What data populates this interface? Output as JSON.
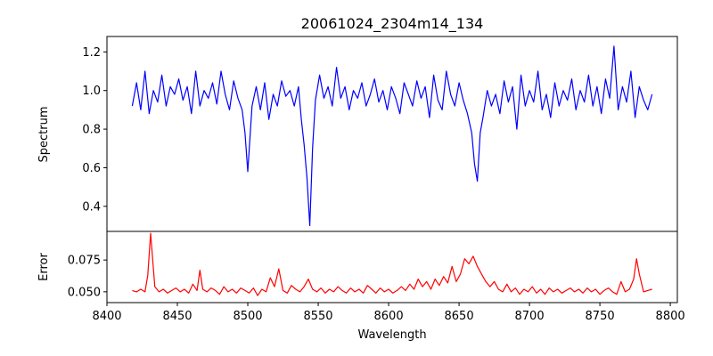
{
  "chart_data": [
    {
      "type": "line",
      "title": "20061024_2304m14_134",
      "xlabel": "",
      "ylabel": "Spectrum",
      "xlim": [
        8400,
        8805
      ],
      "ylim": [
        0.27,
        1.28
      ],
      "xticks": [
        8400,
        8450,
        8500,
        8550,
        8600,
        8650,
        8700,
        8750,
        8800
      ],
      "yticks": [
        0.4,
        0.6,
        0.8,
        1.0,
        1.2
      ],
      "ytick_labels": [
        "0.4",
        "0.6",
        "0.8",
        "1.0",
        "1.2"
      ],
      "color": "#0000ff",
      "series": [
        {
          "x": [
            8418,
            8421,
            8424,
            8427,
            8430,
            8433,
            8436,
            8439,
            8442,
            8445,
            8448,
            8451,
            8454,
            8457,
            8460,
            8463,
            8466,
            8469,
            8472,
            8475,
            8478,
            8481,
            8484,
            8487,
            8490,
            8493,
            8496,
            8498,
            8500,
            8503,
            8506,
            8509,
            8512,
            8515,
            8518,
            8521,
            8524,
            8527,
            8530,
            8533,
            8536,
            8538,
            8540,
            8542,
            8544,
            8546,
            8548,
            8551,
            8554,
            8557,
            8560,
            8563,
            8566,
            8569,
            8572,
            8575,
            8578,
            8581,
            8584,
            8587,
            8590,
            8593,
            8596,
            8599,
            8602,
            8605,
            8608,
            8611,
            8614,
            8617,
            8620,
            8623,
            8626,
            8629,
            8632,
            8635,
            8638,
            8641,
            8644,
            8647,
            8650,
            8653,
            8656,
            8659,
            8661,
            8663,
            8665,
            8667,
            8670,
            8673,
            8676,
            8679,
            8682,
            8685,
            8688,
            8691,
            8694,
            8697,
            8700,
            8703,
            8706,
            8709,
            8712,
            8715,
            8718,
            8721,
            8724,
            8727,
            8730,
            8733,
            8736,
            8739,
            8742,
            8745,
            8748,
            8751,
            8754,
            8757,
            8760,
            8763,
            8766,
            8769,
            8772,
            8775,
            8778,
            8781,
            8784,
            8787
          ],
          "y": [
            0.92,
            1.04,
            0.9,
            1.1,
            0.88,
            1.0,
            0.94,
            1.08,
            0.92,
            1.02,
            0.98,
            1.06,
            0.95,
            1.02,
            0.88,
            1.1,
            0.92,
            1.0,
            0.96,
            1.04,
            0.93,
            1.1,
            0.98,
            0.9,
            1.05,
            0.96,
            0.9,
            0.78,
            0.58,
            0.92,
            1.02,
            0.9,
            1.04,
            0.85,
            0.98,
            0.92,
            1.05,
            0.97,
            1.0,
            0.92,
            1.02,
            0.85,
            0.72,
            0.55,
            0.3,
            0.7,
            0.95,
            1.08,
            0.96,
            1.02,
            0.92,
            1.12,
            0.96,
            1.02,
            0.9,
            1.0,
            0.96,
            1.04,
            0.92,
            0.98,
            1.06,
            0.94,
            1.0,
            0.9,
            1.02,
            0.96,
            0.88,
            1.04,
            0.98,
            0.92,
            1.05,
            0.96,
            1.02,
            0.86,
            1.08,
            0.95,
            0.9,
            1.1,
            0.98,
            0.92,
            1.04,
            0.95,
            0.88,
            0.78,
            0.62,
            0.53,
            0.78,
            0.86,
            1.0,
            0.92,
            0.98,
            0.88,
            1.05,
            0.94,
            1.02,
            0.8,
            1.08,
            0.92,
            1.0,
            0.94,
            1.1,
            0.9,
            0.98,
            0.86,
            1.04,
            0.92,
            1.0,
            0.95,
            1.06,
            0.9,
            1.0,
            0.94,
            1.08,
            0.92,
            1.02,
            0.88,
            1.06,
            0.96,
            1.23,
            0.9,
            1.02,
            0.94,
            1.1,
            0.86,
            1.02,
            0.95,
            0.9,
            0.98
          ]
        }
      ]
    },
    {
      "type": "line",
      "title": "",
      "xlabel": "Wavelength",
      "ylabel": "Error",
      "xlim": [
        8400,
        8805
      ],
      "ylim": [
        0.0415,
        0.0975
      ],
      "xticks": [
        8400,
        8450,
        8500,
        8550,
        8600,
        8650,
        8700,
        8750,
        8800
      ],
      "yticks": [
        0.05,
        0.075
      ],
      "ytick_labels": [
        "0.050",
        "0.075"
      ],
      "color": "#ff0000",
      "series": [
        {
          "x": [
            8418,
            8421,
            8424,
            8427,
            8429,
            8431,
            8434,
            8437,
            8440,
            8443,
            8446,
            8449,
            8452,
            8455,
            8458,
            8461,
            8464,
            8466,
            8468,
            8471,
            8474,
            8477,
            8480,
            8483,
            8486,
            8489,
            8492,
            8495,
            8498,
            8501,
            8504,
            8507,
            8510,
            8513,
            8516,
            8519,
            8522,
            8525,
            8528,
            8531,
            8534,
            8537,
            8540,
            8543,
            8546,
            8549,
            8552,
            8555,
            8558,
            8561,
            8564,
            8567,
            8570,
            8573,
            8576,
            8579,
            8582,
            8585,
            8588,
            8591,
            8594,
            8597,
            8600,
            8603,
            8606,
            8609,
            8612,
            8615,
            8618,
            8621,
            8624,
            8627,
            8630,
            8633,
            8636,
            8639,
            8642,
            8645,
            8648,
            8651,
            8654,
            8657,
            8660,
            8663,
            8666,
            8669,
            8672,
            8675,
            8678,
            8681,
            8684,
            8687,
            8690,
            8693,
            8696,
            8699,
            8702,
            8705,
            8708,
            8711,
            8714,
            8717,
            8720,
            8723,
            8726,
            8729,
            8732,
            8735,
            8738,
            8741,
            8744,
            8747,
            8750,
            8753,
            8756,
            8759,
            8762,
            8765,
            8768,
            8771,
            8774,
            8776,
            8778,
            8781,
            8784,
            8787
          ],
          "y": [
            0.051,
            0.05,
            0.052,
            0.05,
            0.063,
            0.096,
            0.054,
            0.05,
            0.052,
            0.049,
            0.051,
            0.053,
            0.05,
            0.052,
            0.049,
            0.056,
            0.051,
            0.067,
            0.052,
            0.05,
            0.053,
            0.051,
            0.048,
            0.054,
            0.05,
            0.052,
            0.049,
            0.053,
            0.051,
            0.049,
            0.053,
            0.047,
            0.052,
            0.05,
            0.061,
            0.054,
            0.068,
            0.051,
            0.049,
            0.055,
            0.052,
            0.05,
            0.054,
            0.06,
            0.052,
            0.05,
            0.053,
            0.049,
            0.052,
            0.05,
            0.054,
            0.051,
            0.049,
            0.053,
            0.05,
            0.052,
            0.049,
            0.055,
            0.052,
            0.049,
            0.053,
            0.05,
            0.052,
            0.049,
            0.051,
            0.054,
            0.051,
            0.056,
            0.052,
            0.06,
            0.054,
            0.058,
            0.052,
            0.06,
            0.055,
            0.062,
            0.057,
            0.07,
            0.058,
            0.064,
            0.076,
            0.072,
            0.078,
            0.07,
            0.064,
            0.058,
            0.054,
            0.058,
            0.052,
            0.05,
            0.056,
            0.05,
            0.053,
            0.048,
            0.052,
            0.05,
            0.054,
            0.049,
            0.052,
            0.048,
            0.053,
            0.05,
            0.052,
            0.049,
            0.051,
            0.053,
            0.05,
            0.052,
            0.049,
            0.053,
            0.05,
            0.052,
            0.048,
            0.051,
            0.053,
            0.05,
            0.048,
            0.058,
            0.05,
            0.052,
            0.06,
            0.076,
            0.064,
            0.05,
            0.051,
            0.052
          ]
        }
      ]
    }
  ]
}
